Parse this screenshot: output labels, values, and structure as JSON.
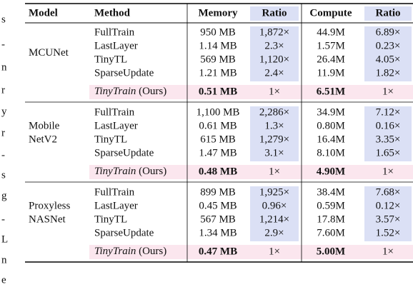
{
  "margin_fragments": [
    "s",
    "-",
    "n",
    "r",
    "y",
    "r",
    "-",
    "s",
    "g",
    "-",
    "L",
    "n",
    "e"
  ],
  "table": {
    "header": [
      "Model",
      "Method",
      "Memory",
      "Ratio",
      "Compute",
      "Ratio"
    ],
    "groups": [
      {
        "model": [
          "MCUNet"
        ],
        "rows": [
          [
            "FullTrain",
            "950 MB",
            "1,872×",
            "44.9M",
            "6.89×"
          ],
          [
            "LastLayer",
            "1.14 MB",
            "2.3×",
            "1.57M",
            "0.23×"
          ],
          [
            "TinyTL",
            "569 MB",
            "1,120×",
            "26.4M",
            "4.05×"
          ],
          [
            "SparseUpdate",
            "1.21 MB",
            "2.4×",
            "11.9M",
            "1.82×"
          ]
        ],
        "ours": [
          [
            "TinyTrain",
            "(Ours)"
          ],
          "0.51 MB",
          "1×",
          "6.51M",
          "1×"
        ]
      },
      {
        "model": [
          "Mobile",
          "NetV2"
        ],
        "rows": [
          [
            "FullTrain",
            "1,100 MB",
            "2,286×",
            "34.9M",
            "7.12×"
          ],
          [
            "LastLayer",
            "0.61 MB",
            "1.3×",
            "0.80M",
            "0.16×"
          ],
          [
            "TinyTL",
            "615 MB",
            "1,279×",
            "16.4M",
            "3.35×"
          ],
          [
            "SparseUpdate",
            "1.47 MB",
            "3.1×",
            "8.10M",
            "1.65×"
          ]
        ],
        "ours": [
          [
            "TinyTrain",
            "(Ours)"
          ],
          "0.48 MB",
          "1×",
          "4.90M",
          "1×"
        ]
      },
      {
        "model": [
          "Proxyless",
          "NASNet"
        ],
        "rows": [
          [
            "FullTrain",
            "899 MB",
            "1,925×",
            "38.4M",
            "7.68×"
          ],
          [
            "LastLayer",
            "0.45 MB",
            "0.96×",
            "0.59M",
            "0.12×"
          ],
          [
            "TinyTL",
            "567 MB",
            "1,214×",
            "17.8M",
            "3.57×"
          ],
          [
            "SparseUpdate",
            "1.34 MB",
            "2.9×",
            "7.60M",
            "1.52×"
          ]
        ],
        "ours": [
          [
            "TinyTrain",
            "(Ours)"
          ],
          "0.47 MB",
          "1×",
          "5.00M",
          "1×"
        ]
      }
    ]
  }
}
